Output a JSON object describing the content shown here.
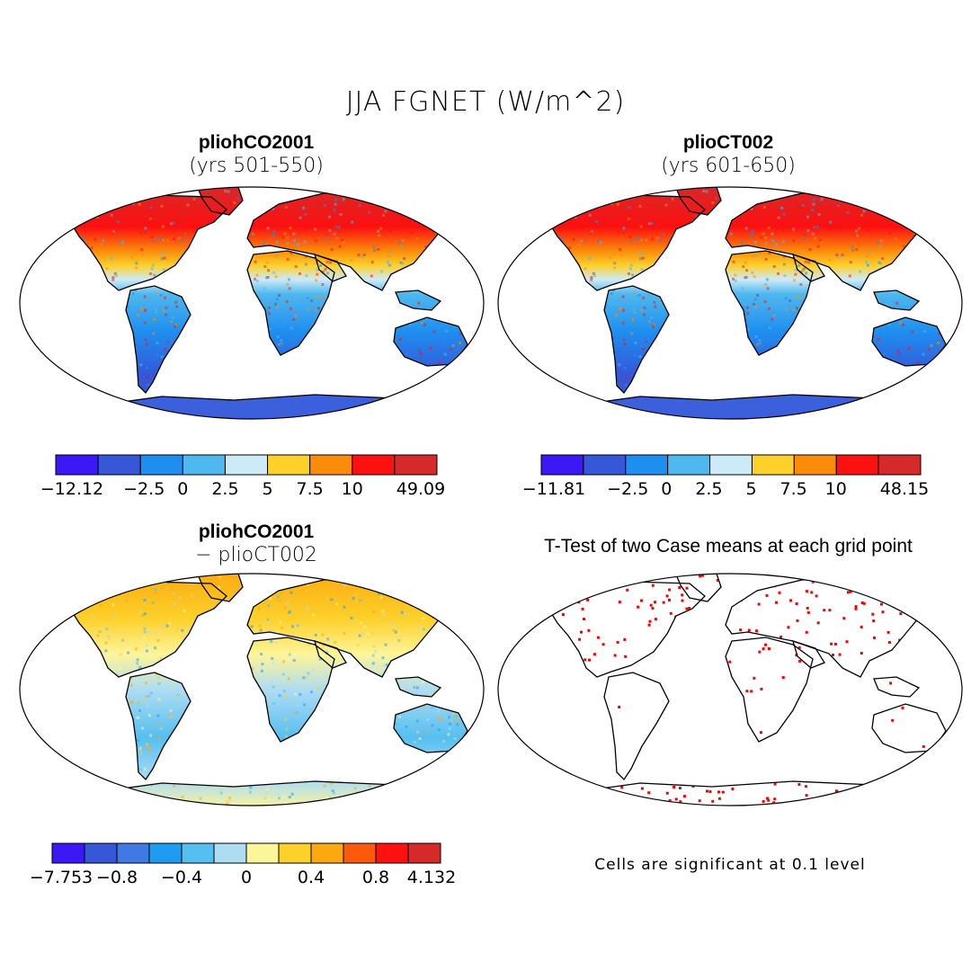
{
  "title": "JJA FGNET (W/m^2)",
  "panels": {
    "tl": {
      "name": "pliohCO2001",
      "sub": "(yrs 501-550)"
    },
    "tr": {
      "name": "plioCT002",
      "sub": "(yrs 601-650)"
    },
    "bl": {
      "name": "pliohCO2001",
      "sub": "− plioCT002"
    },
    "br": {
      "name": "T-Test of two Case means at each grid point"
    }
  },
  "note": "Cells are significant at 0.1 level",
  "colorbars": {
    "tl": {
      "colors": [
        "#3b18f5",
        "#3557d8",
        "#1e8ef0",
        "#4fb8ee",
        "#cdeaf8",
        "#fdd02a",
        "#fb8c0a",
        "#fc1010",
        "#d62a2a"
      ],
      "labels": [
        "−12.12",
        "−2.5",
        "0",
        "2.5",
        "5",
        "7.5",
        "10",
        "49.09"
      ]
    },
    "tr": {
      "colors": [
        "#3b18f5",
        "#3557d8",
        "#1e8ef0",
        "#4fb8ee",
        "#cdeaf8",
        "#fdd02a",
        "#fb8c0a",
        "#fc1010",
        "#d62a2a"
      ],
      "labels": [
        "−11.81",
        "−2.5",
        "0",
        "2.5",
        "5",
        "7.5",
        "10",
        "48.15"
      ]
    },
    "bl": {
      "colors": [
        "#3b18f5",
        "#3557d8",
        "#3f79e3",
        "#1e9cf2",
        "#55bff0",
        "#aedcf3",
        "#fdf59a",
        "#fdd02a",
        "#fba90f",
        "#fb5a0b",
        "#fc1010",
        "#d62a2a"
      ],
      "labels": [
        "−7.753",
        "−0.8",
        "−0.4",
        "0",
        "0.4",
        "0.8",
        "4.132"
      ]
    }
  },
  "colors": {
    "land_warm": "#f23a18",
    "land_cool": "#3f87ea",
    "signif": "#ff0000",
    "antarctic": "#3c5fdc"
  }
}
